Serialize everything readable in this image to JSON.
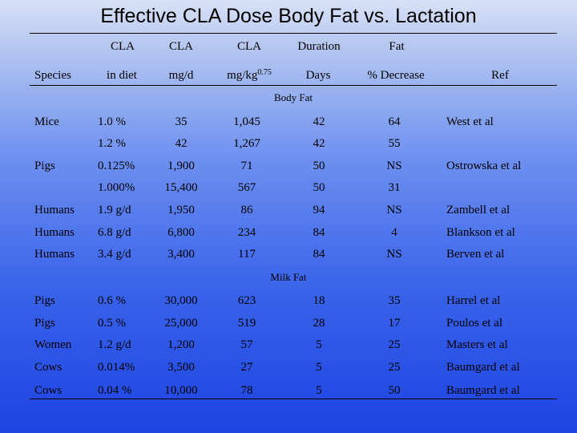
{
  "title": "Effective CLA Dose Body Fat vs. Lactation",
  "header": {
    "row1": [
      "CLA",
      "CLA",
      "CLA",
      "Duration",
      "Fat"
    ],
    "species": "Species",
    "in_diet": "in diet",
    "mgd": "mg/d",
    "mgkg": "mg/kg",
    "mgkg_exp": "0.75",
    "days": "Days",
    "pct": "% Decrease",
    "ref": "Ref"
  },
  "sections": {
    "body_fat": "Body Fat",
    "milk_fat": "Milk Fat"
  },
  "body_rows": [
    {
      "species": "Mice",
      "diet": "1.0 %",
      "mgd": "35",
      "mgkg": "1,045",
      "days": "42",
      "fat": "64",
      "ref": "West et al"
    },
    {
      "species": "",
      "diet": "1.2 %",
      "mgd": "42",
      "mgkg": "1,267",
      "days": "42",
      "fat": "55",
      "ref": ""
    },
    {
      "species": "Pigs",
      "diet": "0.125%",
      "mgd": "1,900",
      "mgkg": "71",
      "days": "50",
      "fat": "NS",
      "ref": "Ostrowska et al"
    },
    {
      "species": "",
      "diet": "1.000%",
      "mgd": "15,400",
      "mgkg": "567",
      "days": "50",
      "fat": "31",
      "ref": ""
    },
    {
      "species": "Humans",
      "diet": "1.9 g/d",
      "mgd": "1,950",
      "mgkg": "86",
      "days": "94",
      "fat": "NS",
      "ref": "Zambell et al"
    },
    {
      "species": "Humans",
      "diet": "6.8 g/d",
      "mgd": "6,800",
      "mgkg": "234",
      "days": "84",
      "fat": "4",
      "ref": "Blankson et al"
    },
    {
      "species": "Humans",
      "diet": "3.4 g/d",
      "mgd": "3,400",
      "mgkg": "117",
      "days": "84",
      "fat": "NS",
      "ref": "Berven et al"
    }
  ],
  "milk_rows": [
    {
      "species": "Pigs",
      "diet": "0.6 %",
      "mgd": "30,000",
      "mgkg": "623",
      "days": "18",
      "fat": "35",
      "ref": "Harrel et al"
    },
    {
      "species": "Pigs",
      "diet": "0.5 %",
      "mgd": "25,000",
      "mgkg": "519",
      "days": "28",
      "fat": "17",
      "ref": "Poulos et al"
    },
    {
      "species": "Women",
      "diet": "1.2 g/d",
      "mgd": "1,200",
      "mgkg": "57",
      "days": "5",
      "fat": "25",
      "ref": "Masters et al"
    },
    {
      "species": "Cows",
      "diet": "0.014%",
      "mgd": "3,500",
      "mgkg": "27",
      "days": "5",
      "fat": "25",
      "ref": "Baumgard et al"
    },
    {
      "species": "Cows",
      "diet": "0.04 %",
      "mgd": "10,000",
      "mgkg": "78",
      "days": "5",
      "fat": "50",
      "ref": "Baumgard et al"
    }
  ]
}
